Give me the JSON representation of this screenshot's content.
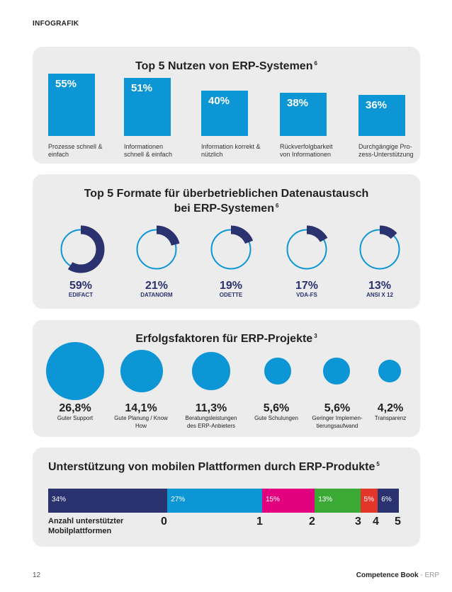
{
  "header": {
    "label": "INFOGRAFIK"
  },
  "footer": {
    "page": "12",
    "book_bold": "Competence Book",
    "book_sep": " - ",
    "book_topic": "ERP"
  },
  "colors": {
    "accent": "#0d96d6",
    "navy": "#2b3270",
    "magenta": "#e3007e",
    "green": "#3aaa35",
    "red": "#e3362b",
    "panel": "#ececec"
  },
  "chart_data": [
    {
      "type": "bar",
      "title": "Top 5 Nutzen von ERP-Systemen",
      "footnote": "6",
      "categories": [
        "Prozesse schnell & einfach",
        "Informationen schnell & einfach",
        "Information korrekt & nützlich",
        "Rückverfolgbarkeit von Informationen",
        "Durchgängige Pro-zess-Unterstützung"
      ],
      "category_lines": [
        [
          "Prozesse schnell &",
          "einfach"
        ],
        [
          "Informationen",
          "schnell & einfach"
        ],
        [
          "Information korrekt &",
          "nützlich"
        ],
        [
          "Rückverfolgbarkeit",
          "von Informationen"
        ],
        [
          "Durchgängige Pro-",
          "zess-Unterstützung"
        ]
      ],
      "values": [
        55,
        51,
        40,
        38,
        36
      ],
      "value_labels": [
        "55%",
        "51%",
        "40%",
        "38%",
        "36%"
      ],
      "unit": "%"
    },
    {
      "type": "pie",
      "title_lines": [
        "Top 5 Formate für überbetrieblichen Datenaustausch",
        "bei ERP-Systemen"
      ],
      "footnote": "6",
      "categories": [
        "EDIFACT",
        "DATANORM",
        "ODETTE",
        "VDA-FS",
        "ANSI X 12"
      ],
      "values": [
        59,
        21,
        19,
        17,
        13
      ],
      "value_labels": [
        "59%",
        "21%",
        "19%",
        "17%",
        "13%"
      ],
      "unit": "%"
    },
    {
      "type": "scatter",
      "title": "Erfolgsfaktoren für ERP-Projekte",
      "footnote": "3",
      "categories": [
        "Guter Support",
        "Gute Planung / Know How",
        "Beratungsleistungen des ERP-Anbieters",
        "Gute Schulungen",
        "Geringer Implementierungsaufwand",
        "Transparenz"
      ],
      "category_lines": [
        [
          "Guter Support"
        ],
        [
          "Gute Planung / Know",
          "How"
        ],
        [
          "Beratungsleistungen",
          "des ERP-Anbieters"
        ],
        [
          "Gute Schulungen"
        ],
        [
          "Geringer Implemen-",
          "tierungsaufwand"
        ],
        [
          "Transparenz"
        ]
      ],
      "values": [
        26.8,
        14.1,
        11.3,
        5.6,
        5.6,
        4.2
      ],
      "value_labels": [
        "26,8%",
        "14,1%",
        "11,3%",
        "5,6%",
        "5,6%",
        "4,2%"
      ],
      "unit": "%"
    },
    {
      "type": "bar",
      "subtype": "stacked-100",
      "title": "Unterstützung von mobilen Plattformen durch ERP-Produkte",
      "footnote": "5",
      "categories": [
        "0",
        "1",
        "2",
        "3",
        "4",
        "5"
      ],
      "values": [
        34,
        27,
        15,
        13,
        5,
        6
      ],
      "value_labels": [
        "34%",
        "27%",
        "15%",
        "13%",
        "5%",
        "6%"
      ],
      "segment_colors": [
        "#2b3270",
        "#0d96d6",
        "#e3007e",
        "#3aaa35",
        "#e3362b",
        "#2b3270"
      ],
      "xlabel_lines": [
        "Anzahl unterstützter",
        "Mobilplattformen"
      ],
      "unit": "%"
    }
  ]
}
